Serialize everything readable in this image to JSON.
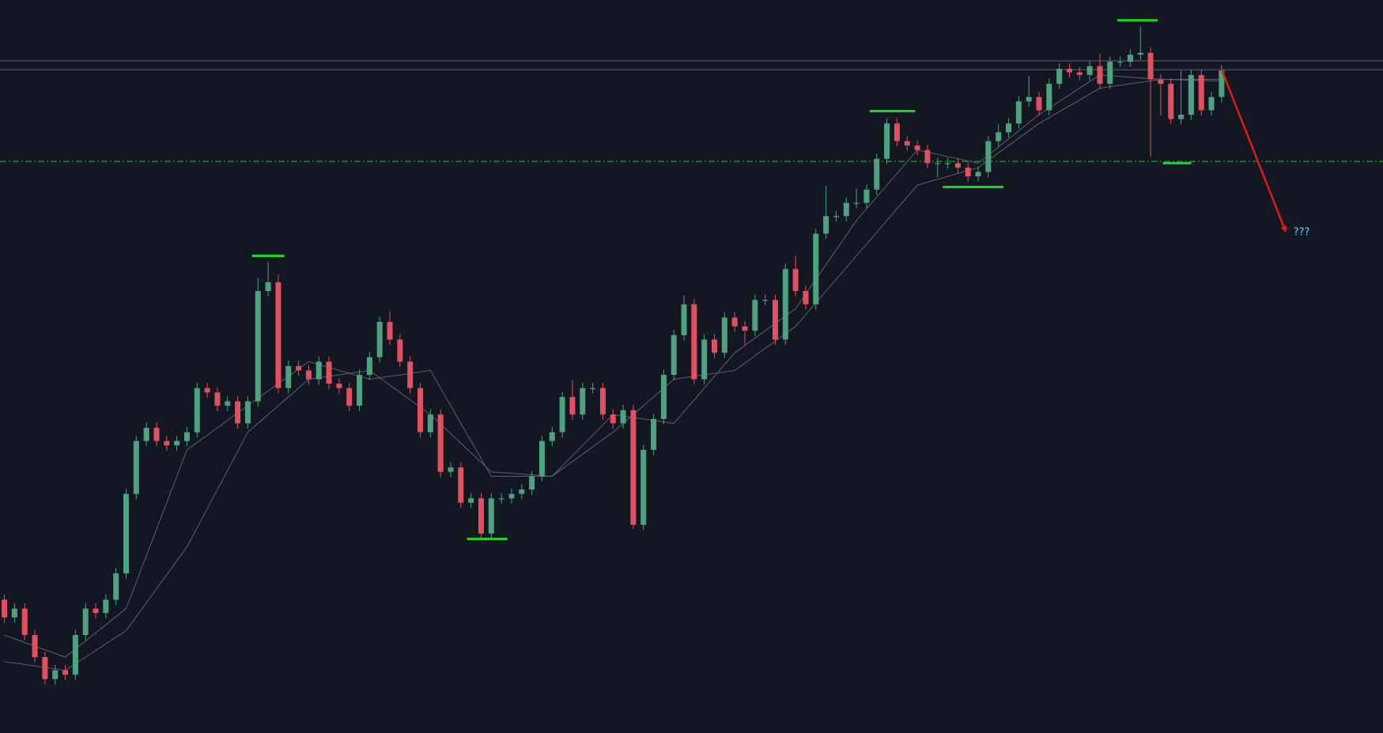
{
  "chart_data": {
    "type": "candlestick",
    "ylim": [
      0,
      831
    ],
    "bull_color": "#4da27f",
    "bear_color": "#e0505f",
    "open": [
      151,
      131,
      141,
      111,
      86,
      61,
      71,
      66,
      111,
      141,
      136,
      151,
      181,
      271,
      331,
      346,
      331,
      326,
      331,
      341,
      391,
      386,
      371,
      376,
      351,
      376,
      501,
      511,
      391,
      416,
      411,
      401,
      421,
      396,
      391,
      371,
      406,
      426,
      466,
      446,
      421,
      391,
      341,
      361,
      296,
      301,
      261,
      266,
      226,
      266,
      266,
      271,
      276,
      291,
      331,
      341,
      381,
      361,
      391,
      391,
      361,
      351,
      366,
      236,
      321,
      356,
      406,
      451,
      486,
      401,
      446,
      431,
      471,
      461,
      456,
      491,
      491,
      446,
      526,
      501,
      486,
      566,
      586,
      586,
      601,
      601,
      616,
      651,
      691,
      671,
      666,
      661,
      646,
      646,
      646,
      641,
      631,
      636,
      671,
      681,
      691,
      716,
      721,
      706,
      736,
      753,
      749,
      746,
      756,
      736,
      761,
      761,
      769,
      771,
      741,
      736,
      696,
      701,
      746,
      706,
      721
    ],
    "high": [
      157,
      147,
      147,
      117,
      92,
      77,
      77,
      117,
      147,
      147,
      157,
      187,
      277,
      337,
      352,
      352,
      337,
      337,
      347,
      397,
      397,
      392,
      382,
      382,
      382,
      516,
      534,
      520,
      422,
      422,
      417,
      427,
      427,
      402,
      397,
      412,
      432,
      472,
      478,
      452,
      427,
      397,
      367,
      367,
      307,
      307,
      272,
      272,
      272,
      272,
      277,
      282,
      297,
      337,
      347,
      387,
      400,
      397,
      397,
      397,
      367,
      372,
      372,
      327,
      362,
      412,
      457,
      496,
      492,
      452,
      452,
      477,
      477,
      467,
      497,
      497,
      497,
      532,
      541,
      507,
      572,
      620,
      592,
      607,
      617,
      622,
      657,
      697,
      697,
      677,
      672,
      667,
      652,
      652,
      652,
      647,
      642,
      677,
      690,
      697,
      722,
      745,
      727,
      742,
      759,
      759,
      755,
      762,
      770,
      767,
      767,
      775,
      801,
      777,
      747,
      742,
      751,
      752,
      752,
      727,
      757
    ],
    "low": [
      125,
      125,
      105,
      80,
      55,
      55,
      60,
      60,
      105,
      130,
      130,
      145,
      175,
      265,
      325,
      325,
      320,
      320,
      325,
      335,
      380,
      365,
      365,
      345,
      345,
      370,
      495,
      385,
      385,
      405,
      395,
      395,
      390,
      385,
      365,
      365,
      400,
      420,
      440,
      415,
      385,
      335,
      335,
      290,
      290,
      255,
      255,
      220,
      220,
      260,
      260,
      265,
      270,
      285,
      325,
      335,
      355,
      355,
      385,
      355,
      345,
      345,
      231,
      230,
      315,
      350,
      400,
      445,
      395,
      395,
      425,
      425,
      455,
      440,
      450,
      485,
      440,
      440,
      495,
      480,
      480,
      560,
      580,
      580,
      595,
      595,
      610,
      645,
      665,
      660,
      655,
      640,
      630,
      640,
      635,
      625,
      625,
      630,
      665,
      675,
      685,
      710,
      700,
      700,
      730,
      743,
      740,
      740,
      730,
      730,
      755,
      755,
      763,
      653,
      700,
      690,
      690,
      695,
      700,
      700,
      715
    ],
    "close": [
      131,
      141,
      111,
      86,
      61,
      71,
      66,
      111,
      141,
      136,
      151,
      181,
      271,
      331,
      346,
      331,
      326,
      331,
      341,
      391,
      386,
      371,
      376,
      351,
      376,
      501,
      511,
      391,
      416,
      411,
      401,
      421,
      396,
      391,
      371,
      406,
      426,
      466,
      446,
      421,
      391,
      341,
      361,
      296,
      301,
      261,
      266,
      226,
      266,
      266,
      271,
      276,
      291,
      331,
      341,
      381,
      361,
      391,
      391,
      361,
      351,
      366,
      236,
      321,
      356,
      406,
      451,
      486,
      401,
      446,
      431,
      471,
      461,
      456,
      491,
      491,
      446,
      526,
      501,
      486,
      566,
      586,
      586,
      601,
      601,
      616,
      651,
      691,
      671,
      666,
      661,
      646,
      646,
      646,
      641,
      631,
      636,
      671,
      681,
      691,
      716,
      721,
      706,
      736,
      753,
      749,
      746,
      756,
      736,
      761,
      761,
      769,
      771,
      741,
      736,
      696,
      701,
      746,
      706,
      721,
      751
    ],
    "overlays": [
      {
        "color": "#5d616b",
        "x": [
          0,
          6,
          12,
          18,
          24,
          30,
          36,
          42,
          48,
          54,
          60,
          66,
          72,
          78,
          84,
          90,
          96,
          102,
          108,
          114,
          120
        ],
        "values": [
          111,
          86,
          141,
          321,
          371,
          421,
          401,
          411,
          291,
          291,
          361,
          351,
          431,
          481,
          581,
          661,
          646,
          701,
          746,
          741,
          741
        ]
      },
      {
        "color": "#5d616b",
        "x": [
          0,
          6,
          12,
          18,
          24,
          30,
          36,
          42,
          48,
          54,
          60,
          66,
          72,
          78,
          84,
          90,
          96,
          102,
          108,
          114,
          120
        ],
        "values": [
          81,
          71,
          116,
          211,
          341,
          401,
          411,
          361,
          296,
          291,
          341,
          401,
          411,
          461,
          541,
          621,
          641,
          691,
          731,
          741,
          739
        ]
      }
    ],
    "levels": [
      {
        "value": 762,
        "color": "#5d616b",
        "style": "solid"
      },
      {
        "value": 752,
        "color": "#5d616b",
        "style": "solid"
      },
      {
        "value": 648,
        "color": "#1fbf3a",
        "style": "dashdot"
      }
    ],
    "markers": [
      {
        "from": 24.4,
        "to": 27.6,
        "value": 541
      },
      {
        "from": 45.6,
        "to": 49.6,
        "value": 220
      },
      {
        "from": 85.3,
        "to": 89.8,
        "value": 705
      },
      {
        "from": 92.5,
        "to": 98.5,
        "value": 619
      },
      {
        "from": 109.7,
        "to": 113.7,
        "value": 808
      },
      {
        "from": 114.2,
        "to": 117,
        "value": 646
      }
    ],
    "marker_color": "#19d22a",
    "annotation": {
      "text": "???",
      "color": "#5fd3ea",
      "arrow_color": "#e3191c",
      "from": [
        120,
        752
      ],
      "to": [
        126.3,
        569
      ]
    }
  }
}
